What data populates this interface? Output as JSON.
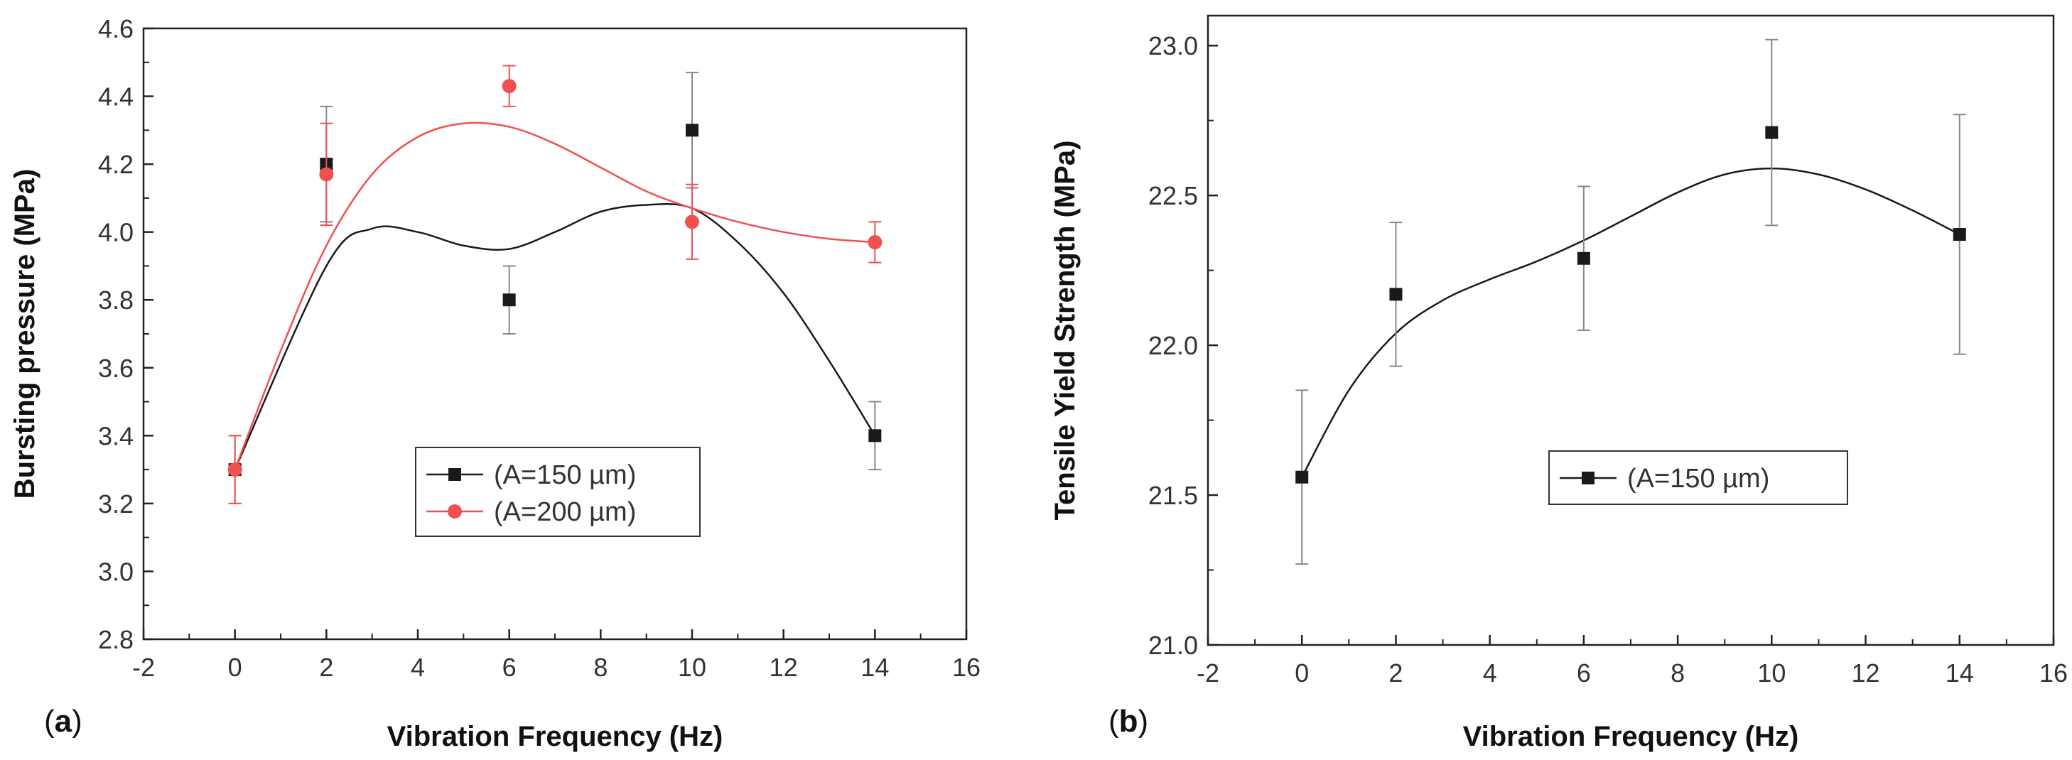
{
  "chart_data": [
    {
      "type": "scatter",
      "panel_label": "a",
      "title": "",
      "xlabel": "Vibration Frequency (Hz)",
      "ylabel": "Bursting pressure (MPa)",
      "xlim": [
        -2,
        16
      ],
      "ylim": [
        2.8,
        4.6
      ],
      "xticks": [
        "-2",
        "0",
        "2",
        "4",
        "6",
        "8",
        "10",
        "12",
        "14",
        "16"
      ],
      "yticks": [
        "2.8",
        "3.0",
        "3.2",
        "3.4",
        "3.6",
        "3.8",
        "4.0",
        "4.2",
        "4.4",
        "4.6"
      ],
      "legend_position": "center-right",
      "series": [
        {
          "name": "(A=150 µm)",
          "color": "#1a1a1a",
          "marker": "square",
          "x": [
            0,
            2,
            6,
            10,
            14
          ],
          "y": [
            3.3,
            4.2,
            3.8,
            4.3,
            3.4
          ],
          "err": [
            0.1,
            0.17,
            0.1,
            0.17,
            0.1
          ],
          "fit": [
            [
              0,
              3.3
            ],
            [
              2,
              3.9
            ],
            [
              3,
              4.01
            ],
            [
              4,
              4.0
            ],
            [
              5,
              3.96
            ],
            [
              6,
              3.95
            ],
            [
              7,
              4.0
            ],
            [
              8,
              4.06
            ],
            [
              9,
              4.08
            ],
            [
              10,
              4.07
            ],
            [
              11,
              3.97
            ],
            [
              12,
              3.82
            ],
            [
              13,
              3.62
            ],
            [
              14,
              3.4
            ]
          ]
        },
        {
          "name": "(A=200 µm)",
          "color": "#f05050",
          "marker": "circle",
          "x": [
            0,
            2,
            6,
            10,
            14
          ],
          "y": [
            3.3,
            4.17,
            4.43,
            4.03,
            3.97
          ],
          "err": [
            0.1,
            0.15,
            0.06,
            0.11,
            0.06
          ],
          "fit": [
            [
              0,
              3.3
            ],
            [
              1,
              3.65
            ],
            [
              2,
              3.96
            ],
            [
              3,
              4.17
            ],
            [
              4,
              4.28
            ],
            [
              5,
              4.32
            ],
            [
              6,
              4.31
            ],
            [
              7,
              4.26
            ],
            [
              8,
              4.19
            ],
            [
              9,
              4.12
            ],
            [
              10,
              4.07
            ],
            [
              11,
              4.03
            ],
            [
              12,
              4.0
            ],
            [
              13,
              3.98
            ],
            [
              14,
              3.97
            ]
          ]
        }
      ]
    },
    {
      "type": "scatter",
      "panel_label": "b",
      "title": "",
      "xlabel": "Vibration Frequency (Hz)",
      "ylabel": "Tensile Yield Strength (MPa)",
      "xlim": [
        -2,
        16
      ],
      "ylim": [
        21.0,
        23.1
      ],
      "xticks": [
        "-2",
        "0",
        "2",
        "4",
        "6",
        "8",
        "10",
        "12",
        "14",
        "16"
      ],
      "yticks": [
        "21.0",
        "21.5",
        "22.0",
        "22.5",
        "23.0"
      ],
      "legend_position": "center-right",
      "series": [
        {
          "name": "(A=150 µm)",
          "color": "#1a1a1a",
          "marker": "square",
          "x": [
            0,
            2,
            6,
            10,
            14
          ],
          "y": [
            21.56,
            22.17,
            22.29,
            22.71,
            22.37
          ],
          "err": [
            0.29,
            0.24,
            0.24,
            0.31,
            0.4
          ],
          "fit": [
            [
              0,
              21.56
            ],
            [
              1,
              21.85
            ],
            [
              2,
              22.04
            ],
            [
              3,
              22.15
            ],
            [
              4,
              22.22
            ],
            [
              5,
              22.28
            ],
            [
              6,
              22.35
            ],
            [
              7,
              22.43
            ],
            [
              8,
              22.51
            ],
            [
              9,
              22.57
            ],
            [
              10,
              22.59
            ],
            [
              11,
              22.57
            ],
            [
              12,
              22.52
            ],
            [
              13,
              22.45
            ],
            [
              14,
              22.37
            ]
          ]
        }
      ]
    }
  ]
}
